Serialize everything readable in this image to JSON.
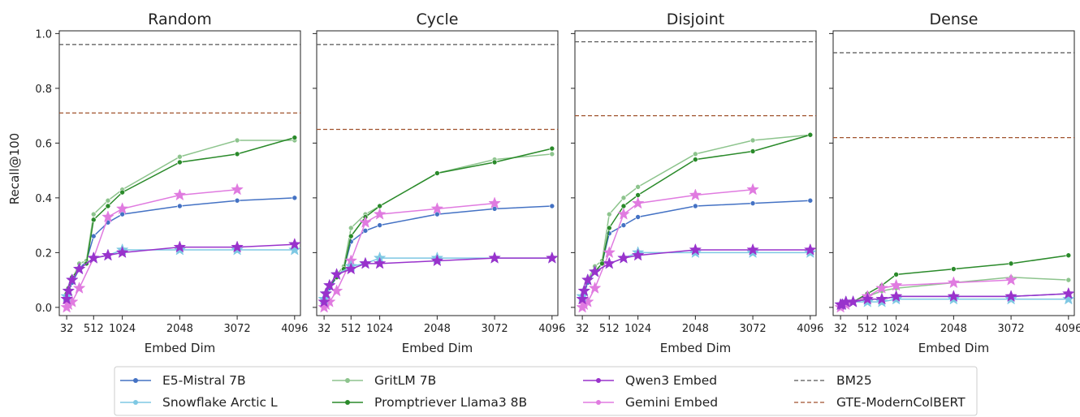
{
  "chart_data": {
    "type": "line",
    "ylabel": "Recall@100",
    "xlabel": "Embed Dim",
    "ylim": [
      -0.03,
      1.01
    ],
    "xlim": [
      -100,
      4200
    ],
    "xticks": [
      32,
      512,
      1024,
      2048,
      3072,
      4096
    ],
    "yticks": [
      0.0,
      0.2,
      0.4,
      0.6,
      0.8,
      1.0
    ],
    "grid": false,
    "legend_placement": "bottom-center",
    "colors": {
      "E5-Mistral 7B": "#4472c4",
      "Snowflake Arctic L": "#7ec8e3",
      "GritLM 7B": "#8dc48d",
      "Promptriever Llama3 8B": "#2a8a2a",
      "Qwen3 Embed": "#9932cc",
      "Gemini Embed": "#e07be0",
      "BM25": "#555555",
      "GTE-ModernColBERT": "#a0522d"
    },
    "legend": [
      "E5-Mistral 7B",
      "Snowflake Arctic L",
      "GritLM 7B",
      "Promptriever Llama3 8B",
      "Qwen3 Embed",
      "Gemini Embed",
      "BM25",
      "GTE-ModernColBERT"
    ],
    "panels": [
      {
        "title": "Random",
        "baselines": [
          {
            "name": "BM25",
            "value": 0.96
          },
          {
            "name": "GTE-ModernColBERT",
            "value": 0.71
          }
        ],
        "series": [
          {
            "name": "E5-Mistral 7B",
            "marker": "dot",
            "x": [
              32,
              64,
              128,
              256,
              384,
              512,
              768,
              1024,
              2048,
              3072,
              4096
            ],
            "y": [
              0.03,
              0.05,
              0.09,
              0.14,
              0.17,
              0.26,
              0.31,
              0.34,
              0.37,
              0.39,
              0.4
            ]
          },
          {
            "name": "GritLM 7B",
            "marker": "dot",
            "x": [
              32,
              64,
              128,
              256,
              384,
              512,
              768,
              1024,
              2048,
              3072,
              4096
            ],
            "y": [
              0.04,
              0.06,
              0.1,
              0.16,
              0.17,
              0.34,
              0.39,
              0.43,
              0.55,
              0.61,
              0.61
            ]
          },
          {
            "name": "Promptriever Llama3 8B",
            "marker": "dot",
            "x": [
              32,
              64,
              128,
              256,
              384,
              512,
              768,
              1024,
              2048,
              3072,
              4096
            ],
            "y": [
              0.05,
              0.07,
              0.11,
              0.14,
              0.16,
              0.32,
              0.37,
              0.42,
              0.53,
              0.56,
              0.62
            ]
          },
          {
            "name": "Gemini Embed",
            "marker": "star",
            "x": [
              32,
              64,
              128,
              256,
              512,
              768,
              1024,
              2048,
              3072
            ],
            "y": [
              0.0,
              0.01,
              0.02,
              0.07,
              0.18,
              0.33,
              0.36,
              0.41,
              0.43
            ]
          },
          {
            "name": "Snowflake Arctic L",
            "marker": "star",
            "x": [
              32,
              64,
              128,
              256,
              512,
              768,
              1024,
              2048,
              3072,
              4096
            ],
            "y": [
              0.04,
              0.06,
              0.1,
              0.14,
              0.18,
              0.19,
              0.21,
              0.21,
              0.21,
              0.21
            ]
          },
          {
            "name": "Qwen3 Embed",
            "marker": "star",
            "x": [
              32,
              64,
              128,
              256,
              512,
              768,
              1024,
              2048,
              3072,
              4096
            ],
            "y": [
              0.03,
              0.06,
              0.1,
              0.14,
              0.18,
              0.19,
              0.2,
              0.22,
              0.22,
              0.23
            ]
          }
        ]
      },
      {
        "title": "Cycle",
        "baselines": [
          {
            "name": "BM25",
            "value": 0.96
          },
          {
            "name": "GTE-ModernColBERT",
            "value": 0.65
          }
        ],
        "series": [
          {
            "name": "E5-Mistral 7B",
            "marker": "dot",
            "x": [
              32,
              64,
              128,
              256,
              384,
              512,
              768,
              1024,
              2048,
              3072,
              4096
            ],
            "y": [
              0.02,
              0.04,
              0.07,
              0.11,
              0.14,
              0.24,
              0.28,
              0.3,
              0.34,
              0.36,
              0.37
            ]
          },
          {
            "name": "GritLM 7B",
            "marker": "dot",
            "x": [
              32,
              64,
              128,
              256,
              384,
              512,
              768,
              1024,
              2048,
              3072,
              4096
            ],
            "y": [
              0.03,
              0.05,
              0.08,
              0.12,
              0.15,
              0.29,
              0.34,
              0.37,
              0.49,
              0.54,
              0.56
            ]
          },
          {
            "name": "Promptriever Llama3 8B",
            "marker": "dot",
            "x": [
              32,
              64,
              128,
              256,
              384,
              512,
              768,
              1024,
              2048,
              3072,
              4096
            ],
            "y": [
              0.03,
              0.05,
              0.08,
              0.11,
              0.14,
              0.26,
              0.33,
              0.37,
              0.49,
              0.53,
              0.58
            ]
          },
          {
            "name": "Gemini Embed",
            "marker": "star",
            "x": [
              32,
              64,
              128,
              256,
              512,
              768,
              1024,
              2048,
              3072
            ],
            "y": [
              0.0,
              0.01,
              0.02,
              0.06,
              0.17,
              0.31,
              0.34,
              0.36,
              0.38
            ]
          },
          {
            "name": "Snowflake Arctic L",
            "marker": "star",
            "x": [
              32,
              64,
              128,
              256,
              512,
              768,
              1024,
              2048,
              3072,
              4096
            ],
            "y": [
              0.03,
              0.05,
              0.08,
              0.12,
              0.15,
              0.16,
              0.18,
              0.18,
              0.18,
              0.18
            ]
          },
          {
            "name": "Qwen3 Embed",
            "marker": "star",
            "x": [
              32,
              64,
              128,
              256,
              512,
              768,
              1024,
              2048,
              3072,
              4096
            ],
            "y": [
              0.02,
              0.05,
              0.08,
              0.12,
              0.14,
              0.16,
              0.16,
              0.17,
              0.18,
              0.18
            ]
          }
        ]
      },
      {
        "title": "Disjoint",
        "baselines": [
          {
            "name": "BM25",
            "value": 0.97
          },
          {
            "name": "GTE-ModernColBERT",
            "value": 0.7
          }
        ],
        "series": [
          {
            "name": "E5-Mistral 7B",
            "marker": "dot",
            "x": [
              32,
              64,
              128,
              256,
              384,
              512,
              768,
              1024,
              2048,
              3072,
              4096
            ],
            "y": [
              0.03,
              0.05,
              0.09,
              0.13,
              0.16,
              0.27,
              0.3,
              0.33,
              0.37,
              0.38,
              0.39
            ]
          },
          {
            "name": "GritLM 7B",
            "marker": "dot",
            "x": [
              32,
              64,
              128,
              256,
              384,
              512,
              768,
              1024,
              2048,
              3072,
              4096
            ],
            "y": [
              0.04,
              0.06,
              0.1,
              0.15,
              0.17,
              0.34,
              0.4,
              0.44,
              0.56,
              0.61,
              0.63
            ]
          },
          {
            "name": "Promptriever Llama3 8B",
            "marker": "dot",
            "x": [
              32,
              64,
              128,
              256,
              384,
              512,
              768,
              1024,
              2048,
              3072,
              4096
            ],
            "y": [
              0.04,
              0.06,
              0.1,
              0.13,
              0.16,
              0.29,
              0.37,
              0.41,
              0.54,
              0.57,
              0.63
            ]
          },
          {
            "name": "Gemini Embed",
            "marker": "star",
            "x": [
              32,
              64,
              128,
              256,
              512,
              768,
              1024,
              2048,
              3072
            ],
            "y": [
              0.0,
              0.01,
              0.02,
              0.07,
              0.2,
              0.34,
              0.38,
              0.41,
              0.43
            ]
          },
          {
            "name": "Snowflake Arctic L",
            "marker": "star",
            "x": [
              32,
              64,
              128,
              256,
              512,
              768,
              1024,
              2048,
              3072,
              4096
            ],
            "y": [
              0.04,
              0.06,
              0.1,
              0.13,
              0.16,
              0.18,
              0.2,
              0.2,
              0.2,
              0.2
            ]
          },
          {
            "name": "Qwen3 Embed",
            "marker": "star",
            "x": [
              32,
              64,
              128,
              256,
              512,
              768,
              1024,
              2048,
              3072,
              4096
            ],
            "y": [
              0.03,
              0.06,
              0.1,
              0.13,
              0.16,
              0.18,
              0.19,
              0.21,
              0.21,
              0.21
            ]
          }
        ]
      },
      {
        "title": "Dense",
        "baselines": [
          {
            "name": "BM25",
            "value": 0.93
          },
          {
            "name": "GTE-ModernColBERT",
            "value": 0.62
          }
        ],
        "series": [
          {
            "name": "E5-Mistral 7B",
            "marker": "dot",
            "x": [
              32,
              64,
              128,
              256,
              512,
              768,
              1024,
              2048,
              3072,
              4096
            ],
            "y": [
              0.01,
              0.01,
              0.02,
              0.02,
              0.03,
              0.03,
              0.04,
              0.04,
              0.04,
              0.05
            ]
          },
          {
            "name": "GritLM 7B",
            "marker": "dot",
            "x": [
              32,
              64,
              128,
              256,
              512,
              768,
              1024,
              2048,
              3072,
              4096
            ],
            "y": [
              0.01,
              0.01,
              0.02,
              0.02,
              0.04,
              0.06,
              0.07,
              0.09,
              0.11,
              0.1
            ]
          },
          {
            "name": "Promptriever Llama3 8B",
            "marker": "dot",
            "x": [
              32,
              64,
              128,
              256,
              512,
              768,
              1024,
              2048,
              3072,
              4096
            ],
            "y": [
              0.01,
              0.01,
              0.02,
              0.02,
              0.05,
              0.08,
              0.12,
              0.14,
              0.16,
              0.19
            ]
          },
          {
            "name": "Gemini Embed",
            "marker": "star",
            "x": [
              32,
              64,
              128,
              256,
              512,
              768,
              1024,
              2048,
              3072
            ],
            "y": [
              0.0,
              0.01,
              0.01,
              0.02,
              0.04,
              0.07,
              0.08,
              0.09,
              0.1
            ]
          },
          {
            "name": "Snowflake Arctic L",
            "marker": "star",
            "x": [
              32,
              64,
              128,
              256,
              512,
              768,
              1024,
              2048,
              3072,
              4096
            ],
            "y": [
              0.01,
              0.01,
              0.02,
              0.02,
              0.02,
              0.02,
              0.03,
              0.03,
              0.03,
              0.03
            ]
          },
          {
            "name": "Qwen3 Embed",
            "marker": "star",
            "x": [
              32,
              64,
              128,
              256,
              512,
              768,
              1024,
              2048,
              3072,
              4096
            ],
            "y": [
              0.01,
              0.01,
              0.02,
              0.02,
              0.03,
              0.03,
              0.04,
              0.04,
              0.04,
              0.05
            ]
          }
        ]
      }
    ]
  }
}
